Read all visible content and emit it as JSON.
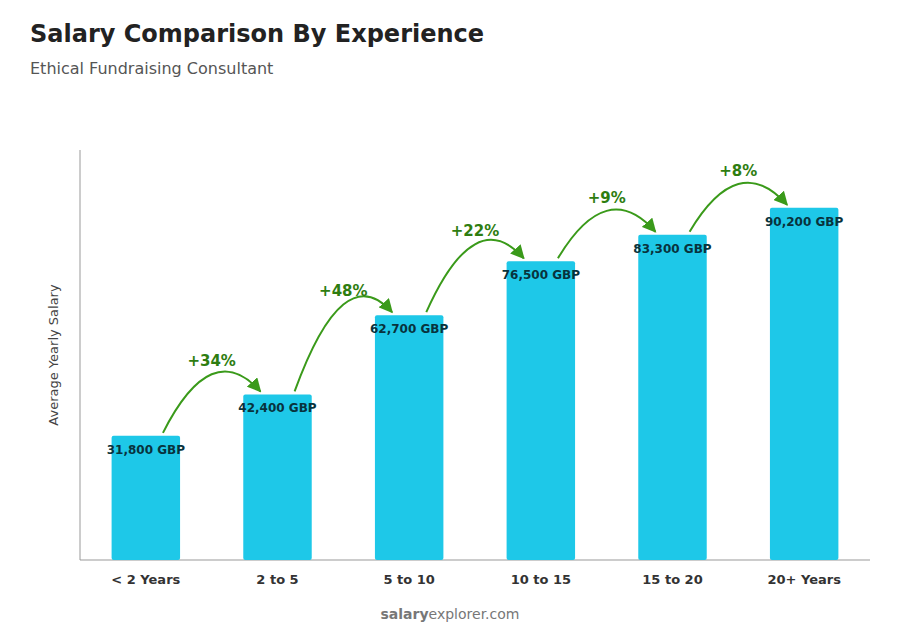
{
  "chart_data": {
    "type": "bar",
    "title": "Salary Comparison By Experience",
    "subtitle": "Ethical Fundraising Consultant",
    "ylabel": "Average Yearly Salary",
    "categories": [
      "< 2 Years",
      "2 to 5",
      "5 to 10",
      "10 to 15",
      "15 to 20",
      "20+ Years"
    ],
    "values": [
      31800,
      42400,
      62700,
      76500,
      83300,
      90200
    ],
    "value_labels": [
      "31,800 GBP",
      "42,400 GBP",
      "62,700 GBP",
      "76,500 GBP",
      "83,300 GBP",
      "90,200 GBP"
    ],
    "data_labels": true,
    "annotations": [
      "+34%",
      "+48%",
      "+22%",
      "+9%",
      "+8%"
    ],
    "watermark": [
      "salary",
      "explorer.com"
    ],
    "color": "#1EC8E8",
    "ylim": [
      0,
      105000
    ],
    "tick_labels": "x",
    "grid": false
  }
}
